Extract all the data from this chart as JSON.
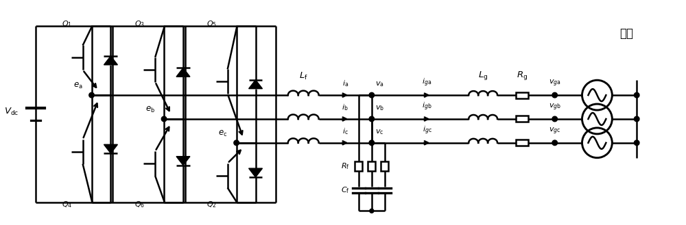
{
  "fig_width": 10.0,
  "fig_height": 3.29,
  "dpi": 100,
  "bg_color": "#ffffff",
  "line_color": "#000000",
  "line_width": 1.8,
  "labels": {
    "Vdc": "V_{\\rm dc}",
    "ea": "e_{\\rm a}",
    "eb": "e_{\\rm b}",
    "ec": "e_{\\rm c}",
    "ia": "i_{\\rm a}",
    "ib": "i_{\\rm b}",
    "ic": "i_{\\rm c}",
    "va": "v_{\\rm a}",
    "vb": "v_{\\rm b}",
    "vc": "v_{\\rm c}",
    "iga": "i_{\\rm ga}",
    "igb": "i_{\\rm gb}",
    "igc": "i_{\\rm gc}",
    "Lf": "L_{\\rm f}",
    "Lg": "L_{\\rm g}",
    "Rg": "R_{\\rm g}",
    "Rf": "R_{\\rm f}",
    "Cf": "C_{\\rm f}",
    "vga": "v_{\\rm ga}",
    "vgb": "v_{\\rm gb}",
    "vgc": "v_{\\rm gc}",
    "Q1": "Q_1",
    "Q2": "Q_2",
    "Q3": "Q_3",
    "Q4": "Q_4",
    "Q5": "Q_5",
    "Q6": "Q_6",
    "grid": "电网"
  }
}
